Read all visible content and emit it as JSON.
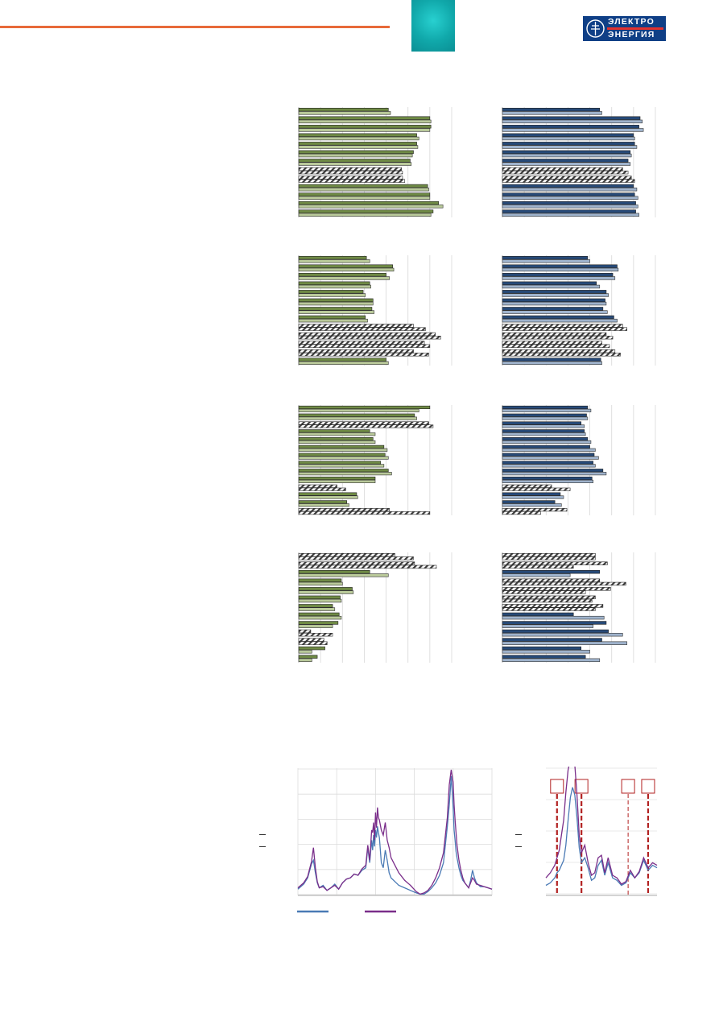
{
  "header": {
    "accent_color": "#e86a3a",
    "logo": {
      "line1": "ЭЛЕКТРО",
      "line2": "ЭНЕРГИЯ",
      "bg_color": "#0f3f86",
      "strip_color": "#e2312d"
    }
  },
  "colors": {
    "green": "#6f8a45",
    "green_light": "#b9c99a",
    "blue": "#274a78",
    "blue_light": "#9fb3cc",
    "hatch": "#777777",
    "series1": "#4a7ab5",
    "series2": "#7a2e8a",
    "marker": "#b22222"
  },
  "bar_charts": [
    {
      "color": "green",
      "xlim": [
        0,
        14
      ],
      "pairs": [
        [
          8.2,
          8.4
        ],
        [
          12.0,
          12.1
        ],
        [
          12.1,
          12.0
        ],
        [
          10.8,
          11.0
        ],
        [
          10.8,
          10.9
        ],
        [
          10.5,
          10.4
        ],
        [
          10.2,
          10.3
        ],
        [
          9.4,
          9.5
        ],
        [
          9.5,
          9.7
        ],
        [
          11.8,
          11.9
        ],
        [
          12.0,
          12.0
        ],
        [
          12.8,
          13.2
        ],
        [
          12.3,
          12.1
        ]
      ],
      "hatched": [
        7,
        8
      ]
    },
    {
      "color": "blue",
      "xlim": [
        0,
        14
      ],
      "pairs": [
        [
          8.9,
          9.1
        ],
        [
          12.6,
          12.8
        ],
        [
          12.5,
          12.9
        ],
        [
          12.0,
          12.1
        ],
        [
          12.1,
          12.3
        ],
        [
          11.7,
          11.8
        ],
        [
          11.5,
          11.7
        ],
        [
          11.0,
          11.5
        ],
        [
          11.8,
          12.1
        ],
        [
          12.0,
          12.3
        ],
        [
          12.1,
          12.4
        ],
        [
          12.2,
          12.4
        ],
        [
          12.2,
          12.5
        ]
      ],
      "hatched": [
        7,
        8
      ]
    },
    {
      "color": "green",
      "xlim": [
        0,
        14
      ],
      "pairs": [
        [
          6.2,
          6.5
        ],
        [
          8.6,
          8.7
        ],
        [
          8.0,
          8.3
        ],
        [
          6.5,
          6.6
        ],
        [
          5.9,
          6.1
        ],
        [
          6.8,
          6.8
        ],
        [
          6.7,
          6.9
        ],
        [
          6.1,
          6.3
        ],
        [
          10.5,
          11.6
        ],
        [
          12.5,
          13.0
        ],
        [
          11.5,
          12.0
        ],
        [
          10.5,
          11.9
        ],
        [
          8.0,
          8.2
        ]
      ],
      "hatched": [
        8,
        9,
        10,
        11
      ]
    },
    {
      "color": "blue",
      "xlim": [
        0,
        14
      ],
      "pairs": [
        [
          7.8,
          8.0
        ],
        [
          10.5,
          10.6
        ],
        [
          10.1,
          10.3
        ],
        [
          8.6,
          8.9
        ],
        [
          9.5,
          9.7
        ],
        [
          9.4,
          9.5
        ],
        [
          9.2,
          9.6
        ],
        [
          10.2,
          10.5
        ],
        [
          11.0,
          11.4
        ],
        [
          9.5,
          10.1
        ],
        [
          9.1,
          9.8
        ],
        [
          10.3,
          10.8
        ],
        [
          9.0,
          9.1
        ]
      ],
      "hatched": [
        8,
        9,
        10,
        11
      ]
    },
    {
      "color": "green",
      "xlim": [
        0,
        14
      ],
      "pairs": [
        [
          12.0,
          11.0
        ],
        [
          10.6,
          10.8
        ],
        [
          11.9,
          12.3
        ],
        [
          6.5,
          7.0
        ],
        [
          6.8,
          7.0
        ],
        [
          7.8,
          8.1
        ],
        [
          7.9,
          8.2
        ],
        [
          7.5,
          7.8
        ],
        [
          8.2,
          8.5
        ],
        [
          7.0,
          7.0
        ],
        [
          3.5,
          4.3
        ],
        [
          5.3,
          5.4
        ],
        [
          4.4,
          4.6
        ],
        [
          8.3,
          12.0
        ]
      ],
      "hatched": [
        2,
        10,
        13
      ]
    },
    {
      "color": "blue",
      "xlim": [
        0,
        14
      ],
      "pairs": [
        [
          7.8,
          8.1
        ],
        [
          7.7,
          7.8
        ],
        [
          7.2,
          7.5
        ],
        [
          7.5,
          7.6
        ],
        [
          7.8,
          8.1
        ],
        [
          8.0,
          8.5
        ],
        [
          8.4,
          8.8
        ],
        [
          8.3,
          8.5
        ],
        [
          9.2,
          9.5
        ],
        [
          8.2,
          8.3
        ],
        [
          4.5,
          6.2
        ],
        [
          5.3,
          5.6
        ],
        [
          4.8,
          5.4
        ],
        [
          5.9,
          3.5
        ]
      ],
      "hatched": [
        10,
        13
      ]
    },
    {
      "color": "green",
      "xlim": [
        0,
        14
      ],
      "pairs": [
        [
          8.8,
          10.5
        ],
        [
          10.6,
          12.6
        ],
        [
          6.5,
          8.2
        ],
        [
          3.9,
          4.0
        ],
        [
          4.9,
          5.0
        ],
        [
          3.8,
          3.9
        ],
        [
          3.1,
          3.3
        ],
        [
          3.7,
          3.9
        ],
        [
          3.6,
          3.1
        ],
        [
          1.1,
          3.1
        ],
        [
          2.3,
          2.6
        ],
        [
          2.4,
          1.2
        ],
        [
          1.7,
          1.2
        ]
      ],
      "hatched": [
        0,
        1,
        9,
        10
      ]
    },
    {
      "color": "blue",
      "xlim": [
        0,
        14
      ],
      "pairs": [
        [
          8.5,
          8.5
        ],
        [
          9.6,
          6.5
        ],
        [
          8.9,
          6.2
        ],
        [
          8.9,
          11.3
        ],
        [
          9.9,
          7.6
        ],
        [
          8.5,
          8.2
        ],
        [
          9.2,
          8.5
        ],
        [
          6.5,
          9.3
        ],
        [
          9.5,
          8.3
        ],
        [
          9.7,
          11.0
        ],
        [
          9.1,
          11.4
        ],
        [
          7.2,
          8.0
        ],
        [
          7.6,
          8.9
        ]
      ],
      "hatched": [
        0,
        1,
        3,
        4,
        5,
        6
      ]
    }
  ],
  "spectra": {
    "left": {
      "xlim": [
        0,
        100
      ],
      "ylim": [
        0,
        100
      ],
      "x": [
        0,
        3,
        5,
        7,
        8,
        9,
        10,
        11,
        13,
        15,
        17,
        19,
        21,
        23,
        25,
        27,
        29,
        31,
        33,
        35,
        36,
        37,
        38,
        38.5,
        39,
        39.5,
        40,
        40.5,
        41,
        41.5,
        42,
        43,
        44,
        45,
        46,
        47,
        48,
        50,
        52,
        55,
        58,
        61,
        63,
        65,
        67,
        69,
        71,
        73,
        75,
        77,
        78,
        79,
        80,
        80.5,
        81,
        81.5,
        82,
        83,
        84,
        85,
        86,
        87,
        88,
        89,
        90,
        91,
        92,
        94,
        96,
        98,
        100
      ],
      "s1": [
        5,
        9,
        14,
        25,
        28,
        18,
        10,
        6,
        8,
        4,
        6,
        9,
        5,
        10,
        13,
        14,
        17,
        16,
        20,
        22,
        38,
        26,
        44,
        36,
        48,
        39,
        52,
        46,
        55,
        50,
        46,
        26,
        22,
        36,
        28,
        18,
        14,
        11,
        8,
        6,
        4,
        2,
        1,
        1,
        3,
        6,
        10,
        16,
        26,
        55,
        72,
        95,
        70,
        52,
        44,
        35,
        30,
        22,
        16,
        12,
        10,
        8,
        6,
        12,
        20,
        14,
        10,
        7,
        7,
        6,
        5
      ],
      "s2": [
        6,
        10,
        15,
        27,
        38,
        22,
        11,
        6,
        7,
        4,
        6,
        8,
        5,
        10,
        13,
        14,
        17,
        16,
        21,
        24,
        40,
        28,
        52,
        50,
        58,
        44,
        66,
        54,
        70,
        62,
        60,
        52,
        48,
        58,
        44,
        38,
        30,
        24,
        18,
        12,
        8,
        3,
        1,
        2,
        4,
        8,
        14,
        22,
        34,
        62,
        88,
        100,
        90,
        72,
        60,
        50,
        40,
        28,
        20,
        14,
        10,
        8,
        6,
        10,
        14,
        12,
        9,
        8,
        7,
        6,
        5
      ]
    },
    "right": {
      "xlim": [
        0,
        100
      ],
      "ylim": [
        0,
        100
      ],
      "x": [
        0,
        4,
        8,
        10,
        12,
        14,
        16,
        18,
        20,
        22,
        24,
        26,
        28,
        30,
        32,
        35,
        38,
        41,
        44,
        47,
        50,
        53,
        56,
        60,
        64,
        68,
        72,
        76,
        80,
        84,
        88,
        92,
        96,
        100
      ],
      "s1": [
        8,
        10,
        14,
        18,
        20,
        24,
        28,
        40,
        60,
        78,
        86,
        80,
        62,
        38,
        26,
        30,
        22,
        12,
        14,
        24,
        28,
        16,
        26,
        14,
        12,
        8,
        10,
        18,
        14,
        18,
        28,
        20,
        24,
        22
      ],
      "s2": [
        14,
        18,
        24,
        30,
        36,
        48,
        60,
        82,
        100,
        108,
        112,
        104,
        80,
        48,
        34,
        40,
        26,
        16,
        18,
        30,
        32,
        18,
        30,
        16,
        14,
        9,
        11,
        20,
        14,
        19,
        30,
        22,
        26,
        24
      ],
      "markers": [
        {
          "x": 10,
          "style": "thick"
        },
        {
          "x": 32,
          "style": "thick"
        },
        {
          "x": 74,
          "style": "thin"
        },
        {
          "x": 92,
          "style": "thick"
        }
      ]
    }
  }
}
